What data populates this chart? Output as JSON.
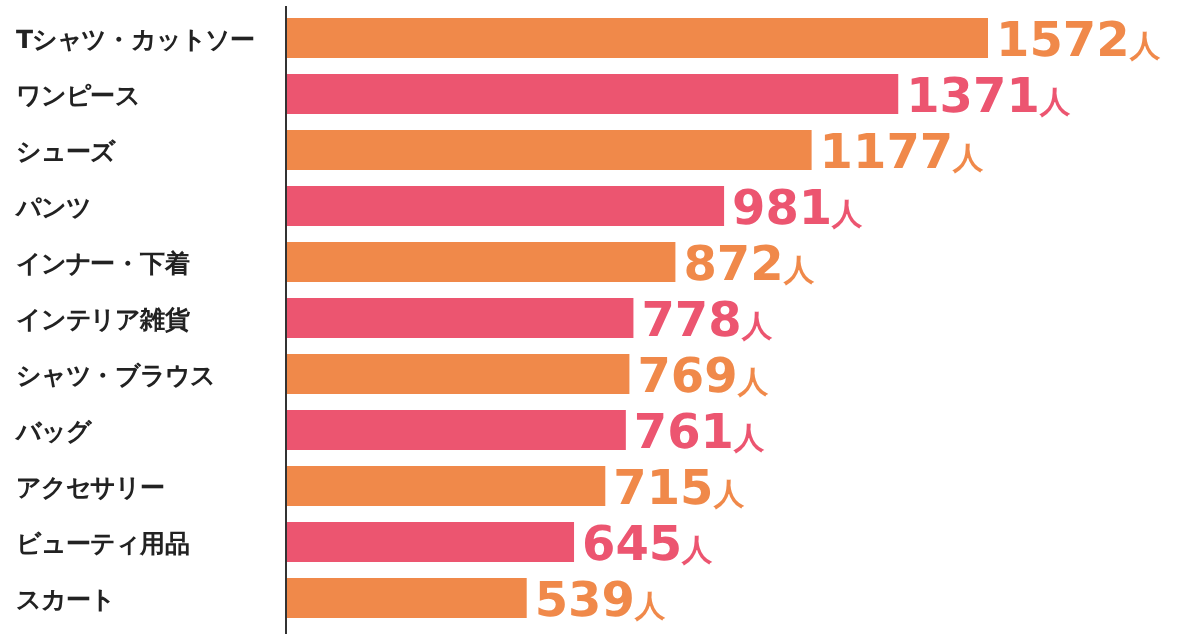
{
  "chart_data": {
    "type": "bar",
    "orientation": "horizontal",
    "categories": [
      "Tシャツ・カットソー",
      "ワンピース",
      "シューズ",
      "パンツ",
      "インナー・下着",
      "インテリア雑貨",
      "シャツ・ブラウス",
      "バッグ",
      "アクセサリー",
      "ビューティ用品",
      "スカート"
    ],
    "values": [
      1572,
      1371,
      1177,
      981,
      872,
      778,
      769,
      761,
      715,
      645,
      539
    ],
    "value_labels": [
      "1572人",
      "1371人",
      "1177人",
      "981人",
      "872人",
      "778人",
      "769人",
      "761人",
      "715人",
      "645人",
      "539人"
    ],
    "colors": [
      "#f0894a",
      "#ec5570",
      "#f0894a",
      "#ec5570",
      "#f0894a",
      "#ec5570",
      "#f0894a",
      "#ec5570",
      "#f0894a",
      "#ec5570",
      "#f0894a"
    ]
  }
}
